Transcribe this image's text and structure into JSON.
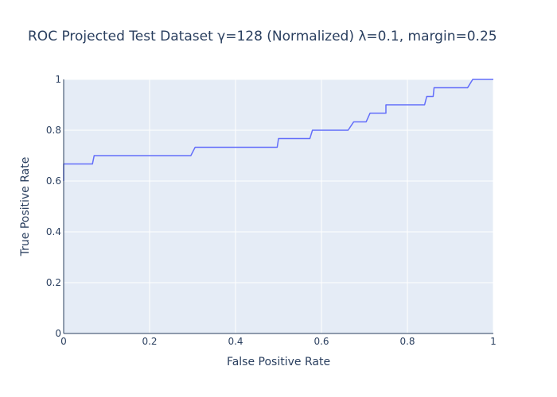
{
  "chart_data": {
    "type": "line",
    "title": "ROC Projected Test Dataset γ=128 (Normalized) λ=0.1, margin=0.25",
    "xlabel": "False Positive Rate",
    "ylabel": "True Positive Rate",
    "xlim": [
      0,
      1
    ],
    "ylim": [
      0,
      1
    ],
    "xticks": [
      0,
      0.2,
      0.4,
      0.6,
      0.8,
      1
    ],
    "yticks": [
      0,
      0.2,
      0.4,
      0.6,
      0.8,
      1
    ],
    "xtick_labels": [
      "0",
      "0.2",
      "0.4",
      "0.6",
      "0.8",
      "1"
    ],
    "ytick_labels": [
      "0",
      "0.2",
      "0.4",
      "0.6",
      "0.8",
      "1"
    ],
    "grid": true,
    "legend": "none",
    "series": [
      {
        "x": [
          0,
          0,
          0.067,
          0.071,
          0.296,
          0.306,
          0.497,
          0.5,
          0.573,
          0.579,
          0.662,
          0.675,
          0.704,
          0.713,
          0.75,
          0.75,
          0.84,
          0.845,
          0.86,
          0.862,
          0.94,
          0.952,
          1
        ],
        "y": [
          0.6,
          0.667,
          0.667,
          0.7,
          0.7,
          0.733,
          0.733,
          0.767,
          0.767,
          0.8,
          0.8,
          0.833,
          0.833,
          0.867,
          0.867,
          0.9,
          0.9,
          0.933,
          0.933,
          0.967,
          0.967,
          1,
          1
        ]
      }
    ],
    "colors": {
      "plot_background": "#e5ecf6",
      "grid": "#ffffff",
      "line": "#636efa",
      "text": "#2a3f5f",
      "axis_line": "#2a3f5f"
    }
  }
}
